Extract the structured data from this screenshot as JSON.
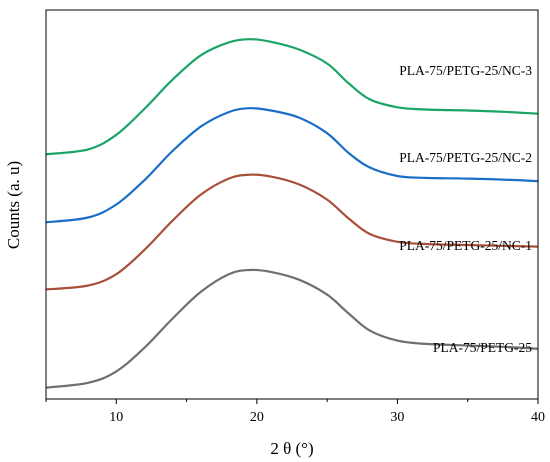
{
  "chart_data": {
    "type": "line",
    "title": "",
    "xlabel": "2 θ (°)",
    "ylabel": "Counts (a. u)",
    "xlim": [
      5,
      40
    ],
    "xticks": [
      10,
      20,
      30,
      40
    ],
    "yticks_shown": false,
    "grid": false,
    "legend": "inline labels beside each curve",
    "series": [
      {
        "name": "PLA-75/PETG-25/NC-3",
        "color": "#1aa567",
        "x": [
          5,
          8,
          10,
          12,
          14,
          16,
          18,
          19.5,
          21,
          23,
          25,
          26.5,
          28,
          30,
          32,
          35,
          38,
          40
        ],
        "y": [
          0.755,
          0.77,
          0.815,
          0.895,
          0.985,
          1.06,
          1.1,
          1.11,
          1.102,
          1.078,
          1.035,
          0.975,
          0.925,
          0.9,
          0.893,
          0.89,
          0.885,
          0.88
        ]
      },
      {
        "name": "PLA-75/PETG-25/NC-2",
        "color": "#1a6ec8",
        "x": [
          5,
          8,
          10,
          12,
          14,
          16,
          18,
          19.5,
          21,
          23,
          25,
          26.5,
          28,
          30,
          32,
          35,
          38,
          40
        ],
        "y": [
          0.545,
          0.56,
          0.6,
          0.675,
          0.765,
          0.84,
          0.885,
          0.897,
          0.89,
          0.868,
          0.82,
          0.76,
          0.715,
          0.688,
          0.682,
          0.68,
          0.676,
          0.672
        ]
      },
      {
        "name": "PLA-75/PETG-25/NC-1",
        "color": "#a8503a",
        "x": [
          5,
          8,
          10,
          12,
          14,
          16,
          18,
          19.5,
          21,
          23,
          25,
          26.5,
          28,
          30,
          32,
          35,
          38,
          40
        ],
        "y": [
          0.338,
          0.35,
          0.385,
          0.46,
          0.55,
          0.63,
          0.68,
          0.692,
          0.686,
          0.662,
          0.615,
          0.558,
          0.51,
          0.485,
          0.478,
          0.475,
          0.472,
          0.47
        ]
      },
      {
        "name": "PLA-75/PETG-25",
        "color": "#6f6f6f",
        "x": [
          5,
          8,
          10,
          12,
          14,
          16,
          18,
          19.5,
          21,
          23,
          25,
          26.5,
          28,
          30,
          32,
          35,
          38,
          40
        ],
        "y": [
          0.035,
          0.05,
          0.085,
          0.158,
          0.248,
          0.33,
          0.385,
          0.398,
          0.392,
          0.368,
          0.322,
          0.265,
          0.212,
          0.18,
          0.17,
          0.165,
          0.16,
          0.155
        ]
      }
    ]
  }
}
